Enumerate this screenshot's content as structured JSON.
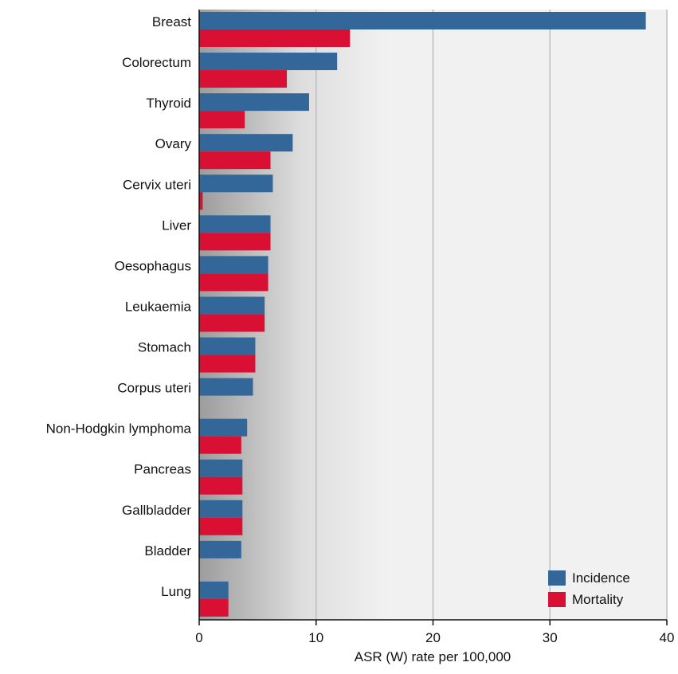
{
  "chart_data": {
    "type": "bar",
    "orientation": "horizontal",
    "categories": [
      "Breast",
      "Colorectum",
      "Thyroid",
      "Ovary",
      "Cervix uteri",
      "Liver",
      "Oesophagus",
      "Leukaemia",
      "Stomach",
      "Corpus uteri",
      "Non-Hodgkin lymphoma",
      "Pancreas",
      "Gallbladder",
      "Bladder",
      "Lung"
    ],
    "series": [
      {
        "name": "Incidence",
        "color": "#336699",
        "values": [
          38.2,
          11.8,
          9.4,
          8.0,
          6.3,
          6.1,
          5.9,
          5.6,
          4.8,
          4.6,
          4.1,
          3.7,
          3.7,
          3.6,
          2.5
        ]
      },
      {
        "name": "Mortality",
        "color": "#d91033",
        "values": [
          12.9,
          7.5,
          3.9,
          6.1,
          0.3,
          6.1,
          5.9,
          5.6,
          4.8,
          null,
          3.6,
          3.7,
          3.7,
          null,
          2.5
        ]
      }
    ],
    "xlabel": "ASR (W) rate per 100,000",
    "ylabel": "",
    "xlim": [
      0,
      40
    ],
    "xticks": [
      0,
      10,
      20,
      30,
      40
    ],
    "grid": true,
    "legend_position": "bottom-right"
  }
}
